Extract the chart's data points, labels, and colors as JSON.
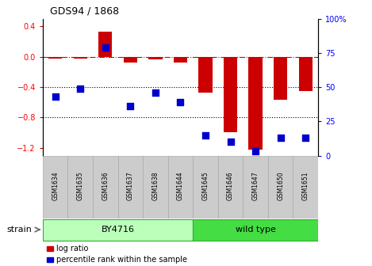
{
  "title": "GDS94 / 1868",
  "samples": [
    "GSM1634",
    "GSM1635",
    "GSM1636",
    "GSM1637",
    "GSM1638",
    "GSM1644",
    "GSM1645",
    "GSM1646",
    "GSM1647",
    "GSM1650",
    "GSM1651"
  ],
  "log_ratio": [
    -0.02,
    -0.02,
    0.33,
    -0.08,
    -0.04,
    -0.08,
    -0.47,
    -0.99,
    -1.22,
    -0.57,
    -0.45
  ],
  "percentile_rank": [
    43,
    49,
    79,
    36,
    46,
    39,
    15,
    10,
    3,
    13,
    13
  ],
  "bar_color": "#cc0000",
  "dot_color": "#0000cc",
  "dashed_line_color": "#cc0000",
  "dotted_line_color": "#000000",
  "ylim_left": [
    -1.3,
    0.5
  ],
  "ylim_right": [
    0,
    100
  ],
  "yticks_left": [
    -1.2,
    -0.8,
    -0.4,
    0.0,
    0.4
  ],
  "yticks_right": [
    0,
    25,
    50,
    75,
    100
  ],
  "n_by4716": 6,
  "n_wildtype": 5,
  "by4716_color": "#bbffbb",
  "wildtype_color": "#44dd44",
  "strain_label": "strain",
  "by4716_label": "BY4716",
  "wildtype_label": "wild type",
  "legend_log_ratio": "log ratio",
  "legend_percentile": "percentile rank within the sample",
  "bar_width": 0.55,
  "dot_size": 30,
  "bg_color": "#ffffff",
  "spine_color": "#000000",
  "tick_bg_color": "#cccccc"
}
